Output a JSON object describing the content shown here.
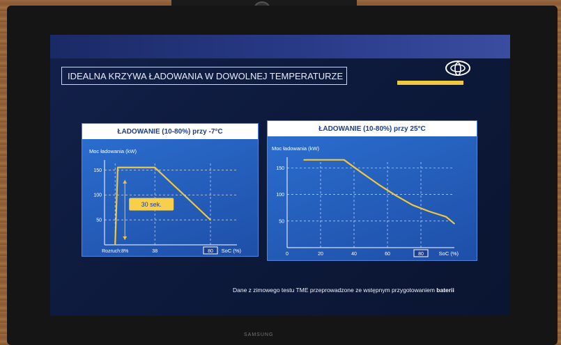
{
  "slide": {
    "title": "IDEALNA KRZYWA ŁADOWANIA W DOWOLNEJ TEMPERATURZE",
    "footnote_main": "Dane z zimowego testu TME przeprowadzone ze wstępnym przygotowaniem ",
    "footnote_bold": "baterii",
    "logo_icon": "toyota-logo-icon",
    "accent_color": "#f0c740"
  },
  "monitor": {
    "brand": "SAMSUNG"
  },
  "chart_data": [
    {
      "type": "line",
      "title": "ŁADOWANIE (10-80%) przy -7°C",
      "ylabel": "Moc ładowania (kW)",
      "xlabel": "SoC (%)",
      "xlim": [
        0,
        100
      ],
      "ylim": [
        0,
        170
      ],
      "yticks": [
        50,
        100,
        150
      ],
      "xtick_labels": [
        {
          "x": 8,
          "label": "Rozruch:8%"
        },
        {
          "x": 38,
          "label": "38"
        },
        {
          "x": 80,
          "label": "80"
        }
      ],
      "highlight_tick": "80",
      "series": [
        {
          "x": [
            8,
            10,
            38,
            80
          ],
          "y": [
            0,
            155,
            155,
            50
          ]
        }
      ],
      "annotation": "30 sek.",
      "grid": "dashed",
      "line_color": "#f0c740"
    },
    {
      "type": "line",
      "title": "ŁADOWANIE (10-80%) przy 25°C",
      "ylabel": "Moc ładowania (kW)",
      "xlabel": "SoC (%)",
      "xlim": [
        0,
        100
      ],
      "ylim": [
        0,
        170
      ],
      "yticks": [
        50,
        100,
        150
      ],
      "xtick_labels": [
        {
          "x": 0,
          "label": "0"
        },
        {
          "x": 20,
          "label": "20"
        },
        {
          "x": 40,
          "label": "40"
        },
        {
          "x": 60,
          "label": "60"
        },
        {
          "x": 80,
          "label": "80"
        }
      ],
      "highlight_tick": "80",
      "series": [
        {
          "x": [
            10,
            20,
            34,
            45,
            55,
            65,
            75,
            85,
            95,
            100
          ],
          "y": [
            165,
            165,
            165,
            140,
            118,
            98,
            80,
            68,
            58,
            45
          ]
        }
      ],
      "grid": "dashed",
      "line_color": "#f0c740"
    }
  ]
}
